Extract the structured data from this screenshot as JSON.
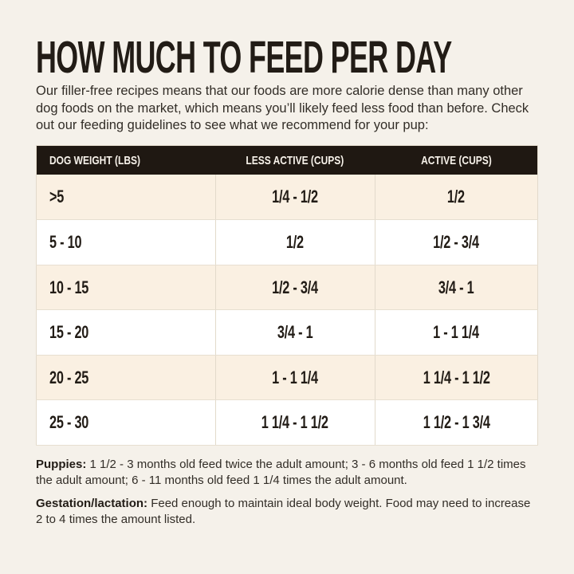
{
  "page": {
    "title": "HOW MUCH TO FEED PER DAY",
    "intro": "Our filler-free recipes means that our foods are more calorie dense than many other dog foods on the market, which means you’ll likely feed less food than before. Check out our feeding guidelines to see what we recommend for your pup:"
  },
  "table": {
    "columns": [
      "DOG WEIGHT (LBS)",
      "LESS ACTIVE (CUPS)",
      "ACTIVE (CUPS)"
    ],
    "rows": [
      [
        ">5",
        "1/4 - 1/2",
        "1/2"
      ],
      [
        "5 - 10",
        "1/2",
        "1/2 - 3/4"
      ],
      [
        "10 - 15",
        "1/2 - 3/4",
        "3/4 - 1"
      ],
      [
        "15 - 20",
        "3/4 - 1",
        "1 - 1 1/4"
      ],
      [
        "20 - 25",
        "1 - 1 1/4",
        "1 1/4 - 1 1/2"
      ],
      [
        "25 - 30",
        "1 1/4 - 1 1/2",
        "1 1/2 - 1 3/4"
      ]
    ]
  },
  "notes": {
    "puppies_label": "Puppies:",
    "puppies_text": " 1 1/2 - 3 months old feed twice the adult amount; 3 - 6 months old feed 1 1/2 times the adult amount; 6 - 11 months old feed 1 1/4 times the adult amount.",
    "gestation_label": "Gestation/lactation:",
    "gestation_text": " Feed enough to maintain ideal body weight. Food may need to increase 2 to 4 times the amount listed."
  },
  "colors": {
    "page_background": "#f5f1ea",
    "table_header_background": "#1f1812",
    "table_header_text": "#f7f2ea",
    "row_alternate_background": "#faf0e2",
    "row_background": "#ffffff",
    "table_border": "#e2dacb",
    "text": "#221c16"
  }
}
